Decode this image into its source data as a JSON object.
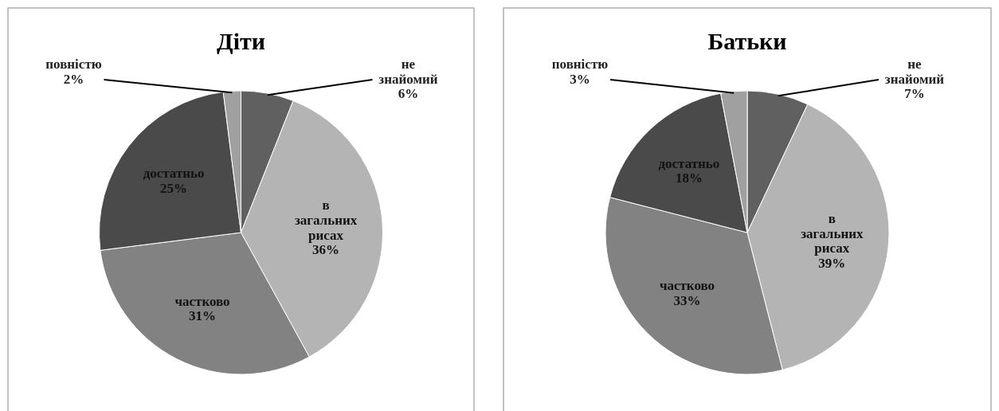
{
  "chart_data": [
    {
      "type": "pie",
      "title": "Діти",
      "categories": [
        "не знайомий",
        "в загальних рисах",
        "частково",
        "достатньо",
        "повністю"
      ],
      "values": [
        6,
        36,
        31,
        25,
        2
      ],
      "value_labels": [
        "6%",
        "36%",
        "31%",
        "25%",
        "2%"
      ],
      "colors": [
        "#606060",
        "#b4b4b4",
        "#828282",
        "#4a4a4a",
        "#a0a0a0"
      ]
    },
    {
      "type": "pie",
      "title": "Батьки",
      "categories": [
        "не знайомий",
        "в загальних рисах",
        "частково",
        "достатньо",
        "повністю"
      ],
      "values": [
        7,
        39,
        33,
        18,
        3
      ],
      "value_labels": [
        "7%",
        "39%",
        "33%",
        "18%",
        "3%"
      ],
      "colors": [
        "#606060",
        "#b4b4b4",
        "#828282",
        "#4a4a4a",
        "#a0a0a0"
      ]
    }
  ]
}
